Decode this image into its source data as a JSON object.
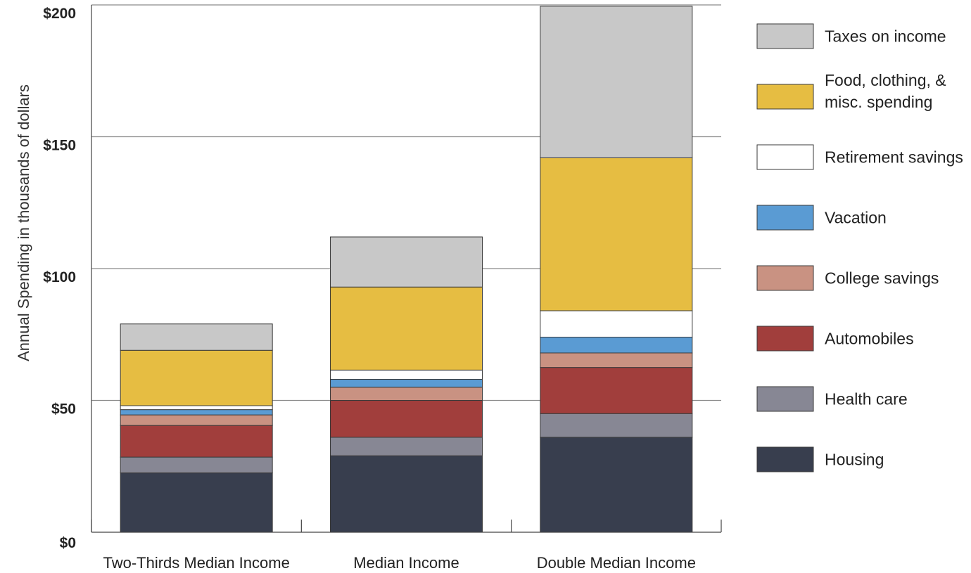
{
  "chart_data": {
    "type": "bar",
    "stacked": true,
    "title": "",
    "xlabel": "",
    "ylabel": "Annual Spending in thousands of dollars",
    "ylim": [
      0,
      200
    ],
    "yticks": [
      0,
      50,
      100,
      150,
      200
    ],
    "ytick_labels": [
      "$0",
      "$50",
      "$100",
      "$150",
      "$200"
    ],
    "grid": true,
    "legend_position": "right",
    "categories": [
      "Two-Thirds Median Income",
      "Median Income",
      "Double Median Income"
    ],
    "series": [
      {
        "name": "Housing",
        "color": "#383e4e",
        "values": [
          22.5,
          29,
          36
        ]
      },
      {
        "name": "Health care",
        "color": "#878794",
        "values": [
          6,
          7,
          9
        ]
      },
      {
        "name": "Automobiles",
        "color": "#a13e3c",
        "values": [
          12,
          14,
          17.5
        ]
      },
      {
        "name": "College savings",
        "color": "#c99282",
        "values": [
          4,
          5,
          5.5
        ]
      },
      {
        "name": "Vacation",
        "color": "#5a9bd3",
        "values": [
          2,
          3,
          6
        ]
      },
      {
        "name": "Retirement savings",
        "color": "#ffffff",
        "values": [
          1.5,
          3.5,
          10
        ]
      },
      {
        "name": "Food, clothing, & misc. spending",
        "color": "#e6bd42",
        "values": [
          21,
          31.5,
          58
        ]
      },
      {
        "name": "Taxes on income",
        "color": "#c8c8c8",
        "values": [
          10,
          19,
          57.5
        ]
      }
    ],
    "legend_order": [
      "Taxes on income",
      "Food, clothing, & misc. spending",
      "Retirement savings",
      "Vacation",
      "College savings",
      "Automobiles",
      "Health care",
      "Housing"
    ],
    "legend_lines": {
      "Food, clothing, & misc. spending": [
        "Food, clothing, &",
        "misc. spending"
      ]
    }
  }
}
